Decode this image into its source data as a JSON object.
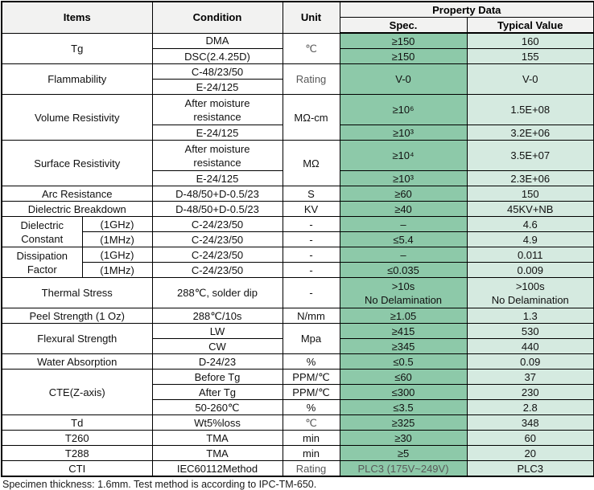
{
  "header": {
    "items": "Items",
    "condition": "Condition",
    "unit": "Unit",
    "property_data": "Property Data",
    "spec": "Spec.",
    "typical": "Typical Value"
  },
  "colors": {
    "spec_bg": "#8dc9a9",
    "typical_bg": "#d5eae0",
    "header_bg": "#f2f2f1",
    "muted_text": "#595959"
  },
  "rows": [
    {
      "cells": [
        {
          "t": "Tg",
          "c": "item",
          "n": "item-cell",
          "cs": 2,
          "rs": 2
        },
        {
          "t": "DMA",
          "c": "cond",
          "n": "condition-cell"
        },
        {
          "t": "℃",
          "c": "unit muted",
          "n": "unit-cell",
          "rs": 2
        },
        {
          "t": "≥150",
          "c": "spec",
          "n": "spec-cell"
        },
        {
          "t": "160",
          "c": "typ",
          "n": "typical-cell"
        }
      ]
    },
    {
      "cells": [
        {
          "t": "DSC(2.4.25D)",
          "c": "cond",
          "n": "condition-cell"
        },
        {
          "t": "≥150",
          "c": "spec",
          "n": "spec-cell"
        },
        {
          "t": "155",
          "c": "typ",
          "n": "typical-cell"
        }
      ]
    },
    {
      "cells": [
        {
          "t": "Flammability",
          "c": "item",
          "n": "item-cell",
          "cs": 2,
          "rs": 2
        },
        {
          "t": "C-48/23/50",
          "c": "cond",
          "n": "condition-cell"
        },
        {
          "t": "Rating",
          "c": "unit muted",
          "n": "unit-cell",
          "rs": 2
        },
        {
          "t": "V-0",
          "c": "spec",
          "n": "spec-cell",
          "rs": 2
        },
        {
          "t": "V-0",
          "c": "typ",
          "n": "typical-cell",
          "rs": 2
        }
      ]
    },
    {
      "cells": [
        {
          "t": "E-24/125",
          "c": "cond",
          "n": "condition-cell"
        }
      ]
    },
    {
      "h": 2,
      "cells": [
        {
          "t": "Volume Resistivity",
          "c": "item",
          "n": "item-cell",
          "cs": 2,
          "rs": 2
        },
        {
          "t": "After moisture\nresistance",
          "c": "cond",
          "n": "condition-cell"
        },
        {
          "t": "MΩ-cm",
          "c": "unit",
          "n": "unit-cell",
          "rs": 2
        },
        {
          "t": "≥10⁶",
          "c": "spec",
          "n": "spec-cell"
        },
        {
          "t": "1.5E+08",
          "c": "typ",
          "n": "typical-cell"
        }
      ]
    },
    {
      "cells": [
        {
          "t": "E-24/125",
          "c": "cond",
          "n": "condition-cell"
        },
        {
          "t": "≥10³",
          "c": "spec",
          "n": "spec-cell"
        },
        {
          "t": "3.2E+06",
          "c": "typ",
          "n": "typical-cell"
        }
      ]
    },
    {
      "h": 2,
      "cells": [
        {
          "t": "Surface Resistivity",
          "c": "item",
          "n": "item-cell",
          "cs": 2,
          "rs": 2
        },
        {
          "t": "After moisture\nresistance",
          "c": "cond",
          "n": "condition-cell"
        },
        {
          "t": "MΩ",
          "c": "unit",
          "n": "unit-cell",
          "rs": 2
        },
        {
          "t": "≥10⁴",
          "c": "spec",
          "n": "spec-cell"
        },
        {
          "t": "3.5E+07",
          "c": "typ",
          "n": "typical-cell"
        }
      ]
    },
    {
      "cells": [
        {
          "t": "E-24/125",
          "c": "cond",
          "n": "condition-cell"
        },
        {
          "t": "≥10³",
          "c": "spec",
          "n": "spec-cell"
        },
        {
          "t": "2.3E+06",
          "c": "typ",
          "n": "typical-cell"
        }
      ]
    },
    {
      "cells": [
        {
          "t": "Arc Resistance",
          "c": "item",
          "n": "item-cell",
          "cs": 2
        },
        {
          "t": "D-48/50+D-0.5/23",
          "c": "cond",
          "n": "condition-cell"
        },
        {
          "t": "S",
          "c": "unit",
          "n": "unit-cell"
        },
        {
          "t": "≥60",
          "c": "spec",
          "n": "spec-cell"
        },
        {
          "t": "150",
          "c": "typ",
          "n": "typical-cell"
        }
      ]
    },
    {
      "cells": [
        {
          "t": "Dielectric Breakdown",
          "c": "item",
          "n": "item-cell",
          "cs": 2
        },
        {
          "t": "D-48/50+D-0.5/23",
          "c": "cond",
          "n": "condition-cell"
        },
        {
          "t": "KV",
          "c": "unit",
          "n": "unit-cell"
        },
        {
          "t": "≥40",
          "c": "spec",
          "n": "spec-cell"
        },
        {
          "t": "45KV+NB",
          "c": "typ",
          "n": "typical-cell"
        }
      ]
    },
    {
      "cells": [
        {
          "t": "Dielectric\nConstant",
          "c": "item",
          "n": "item-cell",
          "rs": 2
        },
        {
          "t": "(1GHz)",
          "c": "item",
          "n": "item-sub-cell"
        },
        {
          "t": "C-24/23/50",
          "c": "cond",
          "n": "condition-cell"
        },
        {
          "t": "-",
          "c": "unit",
          "n": "unit-cell"
        },
        {
          "t": "–",
          "c": "spec",
          "n": "spec-cell"
        },
        {
          "t": "4.6",
          "c": "typ",
          "n": "typical-cell"
        }
      ]
    },
    {
      "cells": [
        {
          "t": "(1MHz)",
          "c": "item",
          "n": "item-sub-cell"
        },
        {
          "t": "C-24/23/50",
          "c": "cond",
          "n": "condition-cell"
        },
        {
          "t": "-",
          "c": "unit",
          "n": "unit-cell"
        },
        {
          "t": "≤5.4",
          "c": "spec",
          "n": "spec-cell"
        },
        {
          "t": "4.9",
          "c": "typ",
          "n": "typical-cell"
        }
      ]
    },
    {
      "cells": [
        {
          "t": "Dissipation\nFactor",
          "c": "item",
          "n": "item-cell",
          "rs": 2
        },
        {
          "t": "(1GHz)",
          "c": "item",
          "n": "item-sub-cell"
        },
        {
          "t": "C-24/23/50",
          "c": "cond",
          "n": "condition-cell"
        },
        {
          "t": "-",
          "c": "unit",
          "n": "unit-cell"
        },
        {
          "t": "–",
          "c": "spec",
          "n": "spec-cell"
        },
        {
          "t": "0.011",
          "c": "typ",
          "n": "typical-cell"
        }
      ]
    },
    {
      "cells": [
        {
          "t": "(1MHz)",
          "c": "item",
          "n": "item-sub-cell"
        },
        {
          "t": "C-24/23/50",
          "c": "cond",
          "n": "condition-cell"
        },
        {
          "t": "-",
          "c": "unit",
          "n": "unit-cell"
        },
        {
          "t": "≤0.035",
          "c": "spec",
          "n": "spec-cell"
        },
        {
          "t": "0.009",
          "c": "typ",
          "n": "typical-cell"
        }
      ]
    },
    {
      "h": 2,
      "cells": [
        {
          "t": "Thermal Stress",
          "c": "item",
          "n": "item-cell",
          "cs": 2
        },
        {
          "t": "288℃, solder dip",
          "c": "cond",
          "n": "condition-cell"
        },
        {
          "t": "-",
          "c": "unit",
          "n": "unit-cell"
        },
        {
          "t": ">10s\nNo Delamination",
          "c": "spec",
          "n": "spec-cell"
        },
        {
          "t": ">100s\nNo Delamination",
          "c": "typ",
          "n": "typical-cell"
        }
      ]
    },
    {
      "cells": [
        {
          "t": "Peel Strength (1 Oz)",
          "c": "item",
          "n": "item-cell",
          "cs": 2
        },
        {
          "t": "288℃/10s",
          "c": "cond",
          "n": "condition-cell"
        },
        {
          "t": "N/mm",
          "c": "unit",
          "n": "unit-cell"
        },
        {
          "t": "≥1.05",
          "c": "spec",
          "n": "spec-cell"
        },
        {
          "t": "1.3",
          "c": "typ",
          "n": "typical-cell"
        }
      ]
    },
    {
      "cells": [
        {
          "t": "Flexural Strength",
          "c": "item",
          "n": "item-cell",
          "cs": 2,
          "rs": 2
        },
        {
          "t": "LW",
          "c": "cond",
          "n": "condition-cell"
        },
        {
          "t": "Mpa",
          "c": "unit",
          "n": "unit-cell",
          "rs": 2
        },
        {
          "t": "≥415",
          "c": "spec",
          "n": "spec-cell"
        },
        {
          "t": "530",
          "c": "typ",
          "n": "typical-cell"
        }
      ]
    },
    {
      "cells": [
        {
          "t": "CW",
          "c": "cond",
          "n": "condition-cell"
        },
        {
          "t": "≥345",
          "c": "spec",
          "n": "spec-cell"
        },
        {
          "t": "440",
          "c": "typ",
          "n": "typical-cell"
        }
      ]
    },
    {
      "cells": [
        {
          "t": "Water Absorption",
          "c": "item",
          "n": "item-cell",
          "cs": 2
        },
        {
          "t": "D-24/23",
          "c": "cond",
          "n": "condition-cell"
        },
        {
          "t": "%",
          "c": "unit",
          "n": "unit-cell"
        },
        {
          "t": "≤0.5",
          "c": "spec",
          "n": "spec-cell"
        },
        {
          "t": "0.09",
          "c": "typ",
          "n": "typical-cell"
        }
      ]
    },
    {
      "cells": [
        {
          "t": "CTE(Z-axis)",
          "c": "item",
          "n": "item-cell",
          "cs": 2,
          "rs": 3
        },
        {
          "t": "Before Tg",
          "c": "cond",
          "n": "condition-cell"
        },
        {
          "t": "PPM/℃",
          "c": "unit",
          "n": "unit-cell"
        },
        {
          "t": "≤60",
          "c": "spec",
          "n": "spec-cell"
        },
        {
          "t": "37",
          "c": "typ",
          "n": "typical-cell"
        }
      ]
    },
    {
      "cells": [
        {
          "t": "After Tg",
          "c": "cond",
          "n": "condition-cell"
        },
        {
          "t": "PPM/℃",
          "c": "unit",
          "n": "unit-cell"
        },
        {
          "t": "≤300",
          "c": "spec",
          "n": "spec-cell"
        },
        {
          "t": "230",
          "c": "typ",
          "n": "typical-cell"
        }
      ]
    },
    {
      "cells": [
        {
          "t": "50-260℃",
          "c": "cond",
          "n": "condition-cell"
        },
        {
          "t": "%",
          "c": "unit",
          "n": "unit-cell"
        },
        {
          "t": "≤3.5",
          "c": "spec",
          "n": "spec-cell"
        },
        {
          "t": "2.8",
          "c": "typ",
          "n": "typical-cell"
        }
      ]
    },
    {
      "cells": [
        {
          "t": "Td",
          "c": "item",
          "n": "item-cell",
          "cs": 2
        },
        {
          "t": "Wt5%loss",
          "c": "cond",
          "n": "condition-cell"
        },
        {
          "t": "℃",
          "c": "unit muted",
          "n": "unit-cell"
        },
        {
          "t": "≥325",
          "c": "spec",
          "n": "spec-cell"
        },
        {
          "t": "348",
          "c": "typ",
          "n": "typical-cell"
        }
      ]
    },
    {
      "cells": [
        {
          "t": "T260",
          "c": "item",
          "n": "item-cell",
          "cs": 2
        },
        {
          "t": "TMA",
          "c": "cond",
          "n": "condition-cell"
        },
        {
          "t": "min",
          "c": "unit",
          "n": "unit-cell"
        },
        {
          "t": "≥30",
          "c": "spec",
          "n": "spec-cell"
        },
        {
          "t": "60",
          "c": "typ",
          "n": "typical-cell"
        }
      ]
    },
    {
      "cells": [
        {
          "t": "T288",
          "c": "item",
          "n": "item-cell",
          "cs": 2
        },
        {
          "t": "TMA",
          "c": "cond",
          "n": "condition-cell"
        },
        {
          "t": "min",
          "c": "unit",
          "n": "unit-cell"
        },
        {
          "t": "≥5",
          "c": "spec",
          "n": "spec-cell"
        },
        {
          "t": "20",
          "c": "typ",
          "n": "typical-cell"
        }
      ]
    },
    {
      "cells": [
        {
          "t": "CTI",
          "c": "item",
          "n": "item-cell",
          "cs": 2
        },
        {
          "t": "IEC60112Method",
          "c": "cond",
          "n": "condition-cell"
        },
        {
          "t": "Rating",
          "c": "unit muted",
          "n": "unit-cell"
        },
        {
          "t": "PLC3 (175V~249V)",
          "c": "spec muted",
          "n": "spec-cell"
        },
        {
          "t": "PLC3",
          "c": "typ",
          "n": "typical-cell"
        }
      ]
    }
  ],
  "footer": {
    "note": "Specimen thickness: 1.6mm. Test method is according to IPC-TM-650."
  }
}
